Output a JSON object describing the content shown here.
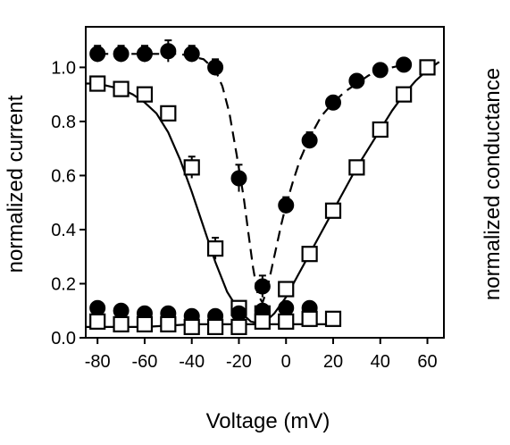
{
  "chart_data": {
    "type": "scatter",
    "title": "",
    "xlabel": "Voltage (mV)",
    "ylabel": "normalized current",
    "y2label": "normalized conductance",
    "xlim": [
      -85,
      67
    ],
    "ylim": [
      0.0,
      1.15
    ],
    "xticks": [
      -80,
      -60,
      -40,
      -20,
      0,
      20,
      40,
      60
    ],
    "xtick_labels": [
      "-80",
      "-60",
      "-40",
      "-20",
      "0",
      "20",
      "40",
      "60"
    ],
    "yticks": [
      0.0,
      0.2,
      0.4,
      0.6,
      0.8,
      1.0
    ],
    "ytick_labels": [
      "0.0",
      "0.2",
      "0.4",
      "0.6",
      "0.8",
      "1.0"
    ],
    "grid": false,
    "legend": "none",
    "series": [
      {
        "marker": "filled-circle",
        "line": "dashed",
        "x": [
          -80,
          -70,
          -60,
          -50,
          -40,
          -30,
          -20,
          -10,
          0,
          10,
          20,
          30,
          40,
          50
        ],
        "y": [
          1.05,
          1.05,
          1.05,
          1.06,
          1.05,
          1.0,
          0.59,
          0.19,
          0.49,
          0.73,
          0.87,
          0.95,
          0.99,
          1.01
        ],
        "err": [
          0.03,
          0.03,
          0.03,
          0.04,
          0.03,
          0.03,
          0.05,
          0.04,
          0.03,
          0.03,
          0.02,
          0.02,
          0.02,
          0.02
        ]
      },
      {
        "marker": "open-square",
        "line": "solid",
        "x": [
          -80,
          -70,
          -60,
          -50,
          -40,
          -30,
          -20,
          -10,
          0,
          10,
          20,
          30,
          40,
          50,
          60
        ],
        "y": [
          0.94,
          0.92,
          0.9,
          0.83,
          0.63,
          0.33,
          0.11,
          0.09,
          0.18,
          0.31,
          0.47,
          0.63,
          0.77,
          0.9,
          1.0
        ],
        "err": [
          0.02,
          0.02,
          0.02,
          0.02,
          0.04,
          0.04,
          0.02,
          0.02,
          0.02,
          0.02,
          0.02,
          0.02,
          0.02,
          0.02,
          0.02
        ]
      },
      {
        "marker": "filled-circle",
        "line": "solid",
        "x": [
          -80,
          -70,
          -60,
          -50,
          -40,
          -30,
          -20,
          -10,
          0,
          10
        ],
        "y": [
          0.11,
          0.1,
          0.09,
          0.09,
          0.08,
          0.08,
          0.09,
          0.1,
          0.11,
          0.11
        ],
        "err": [
          0.02,
          0.02,
          0.02,
          0.02,
          0.02,
          0.02,
          0.02,
          0.02,
          0.02,
          0.02
        ]
      },
      {
        "marker": "open-square",
        "line": "solid",
        "x": [
          -80,
          -70,
          -60,
          -50,
          -40,
          -30,
          -20,
          -10,
          0,
          10,
          20
        ],
        "y": [
          0.06,
          0.05,
          0.05,
          0.05,
          0.04,
          0.04,
          0.04,
          0.06,
          0.06,
          0.07,
          0.07
        ],
        "err": [
          0.01,
          0.01,
          0.01,
          0.01,
          0.01,
          0.01,
          0.01,
          0.01,
          0.01,
          0.01,
          0.01
        ]
      }
    ],
    "curves": [
      {
        "style": "dashed",
        "x": [
          -80,
          -70,
          -60,
          -50,
          -45,
          -40,
          -35,
          -30,
          -27,
          -24,
          -21,
          -18,
          -16,
          -14,
          -12,
          -10,
          -8,
          -6,
          -4,
          -2,
          0,
          3,
          6,
          10,
          15,
          20,
          25,
          30,
          35,
          40,
          45,
          50
        ],
        "y": [
          1.05,
          1.05,
          1.05,
          1.05,
          1.05,
          1.04,
          1.03,
          0.99,
          0.93,
          0.83,
          0.68,
          0.52,
          0.39,
          0.26,
          0.16,
          0.13,
          0.18,
          0.26,
          0.34,
          0.42,
          0.49,
          0.58,
          0.66,
          0.74,
          0.82,
          0.87,
          0.91,
          0.94,
          0.97,
          0.99,
          1.0,
          1.01
        ]
      },
      {
        "style": "solid",
        "x": [
          -85,
          -80,
          -75,
          -70,
          -65,
          -60,
          -55,
          -50,
          -45,
          -40,
          -35,
          -30,
          -25,
          -20,
          -15,
          -10,
          -5,
          0,
          5,
          10,
          15,
          20,
          25,
          30,
          35,
          40,
          45,
          50,
          55,
          60,
          65
        ],
        "y": [
          0.94,
          0.94,
          0.93,
          0.92,
          0.9,
          0.87,
          0.83,
          0.76,
          0.66,
          0.54,
          0.41,
          0.28,
          0.17,
          0.1,
          0.06,
          0.05,
          0.09,
          0.15,
          0.23,
          0.31,
          0.39,
          0.47,
          0.55,
          0.63,
          0.7,
          0.77,
          0.84,
          0.9,
          0.95,
          0.99,
          1.02
        ]
      },
      {
        "style": "solid",
        "x": [
          -85,
          -60,
          -40,
          -20,
          0,
          20
        ],
        "y": [
          0.04,
          0.04,
          0.05,
          0.05,
          0.05,
          0.05
        ]
      }
    ]
  }
}
